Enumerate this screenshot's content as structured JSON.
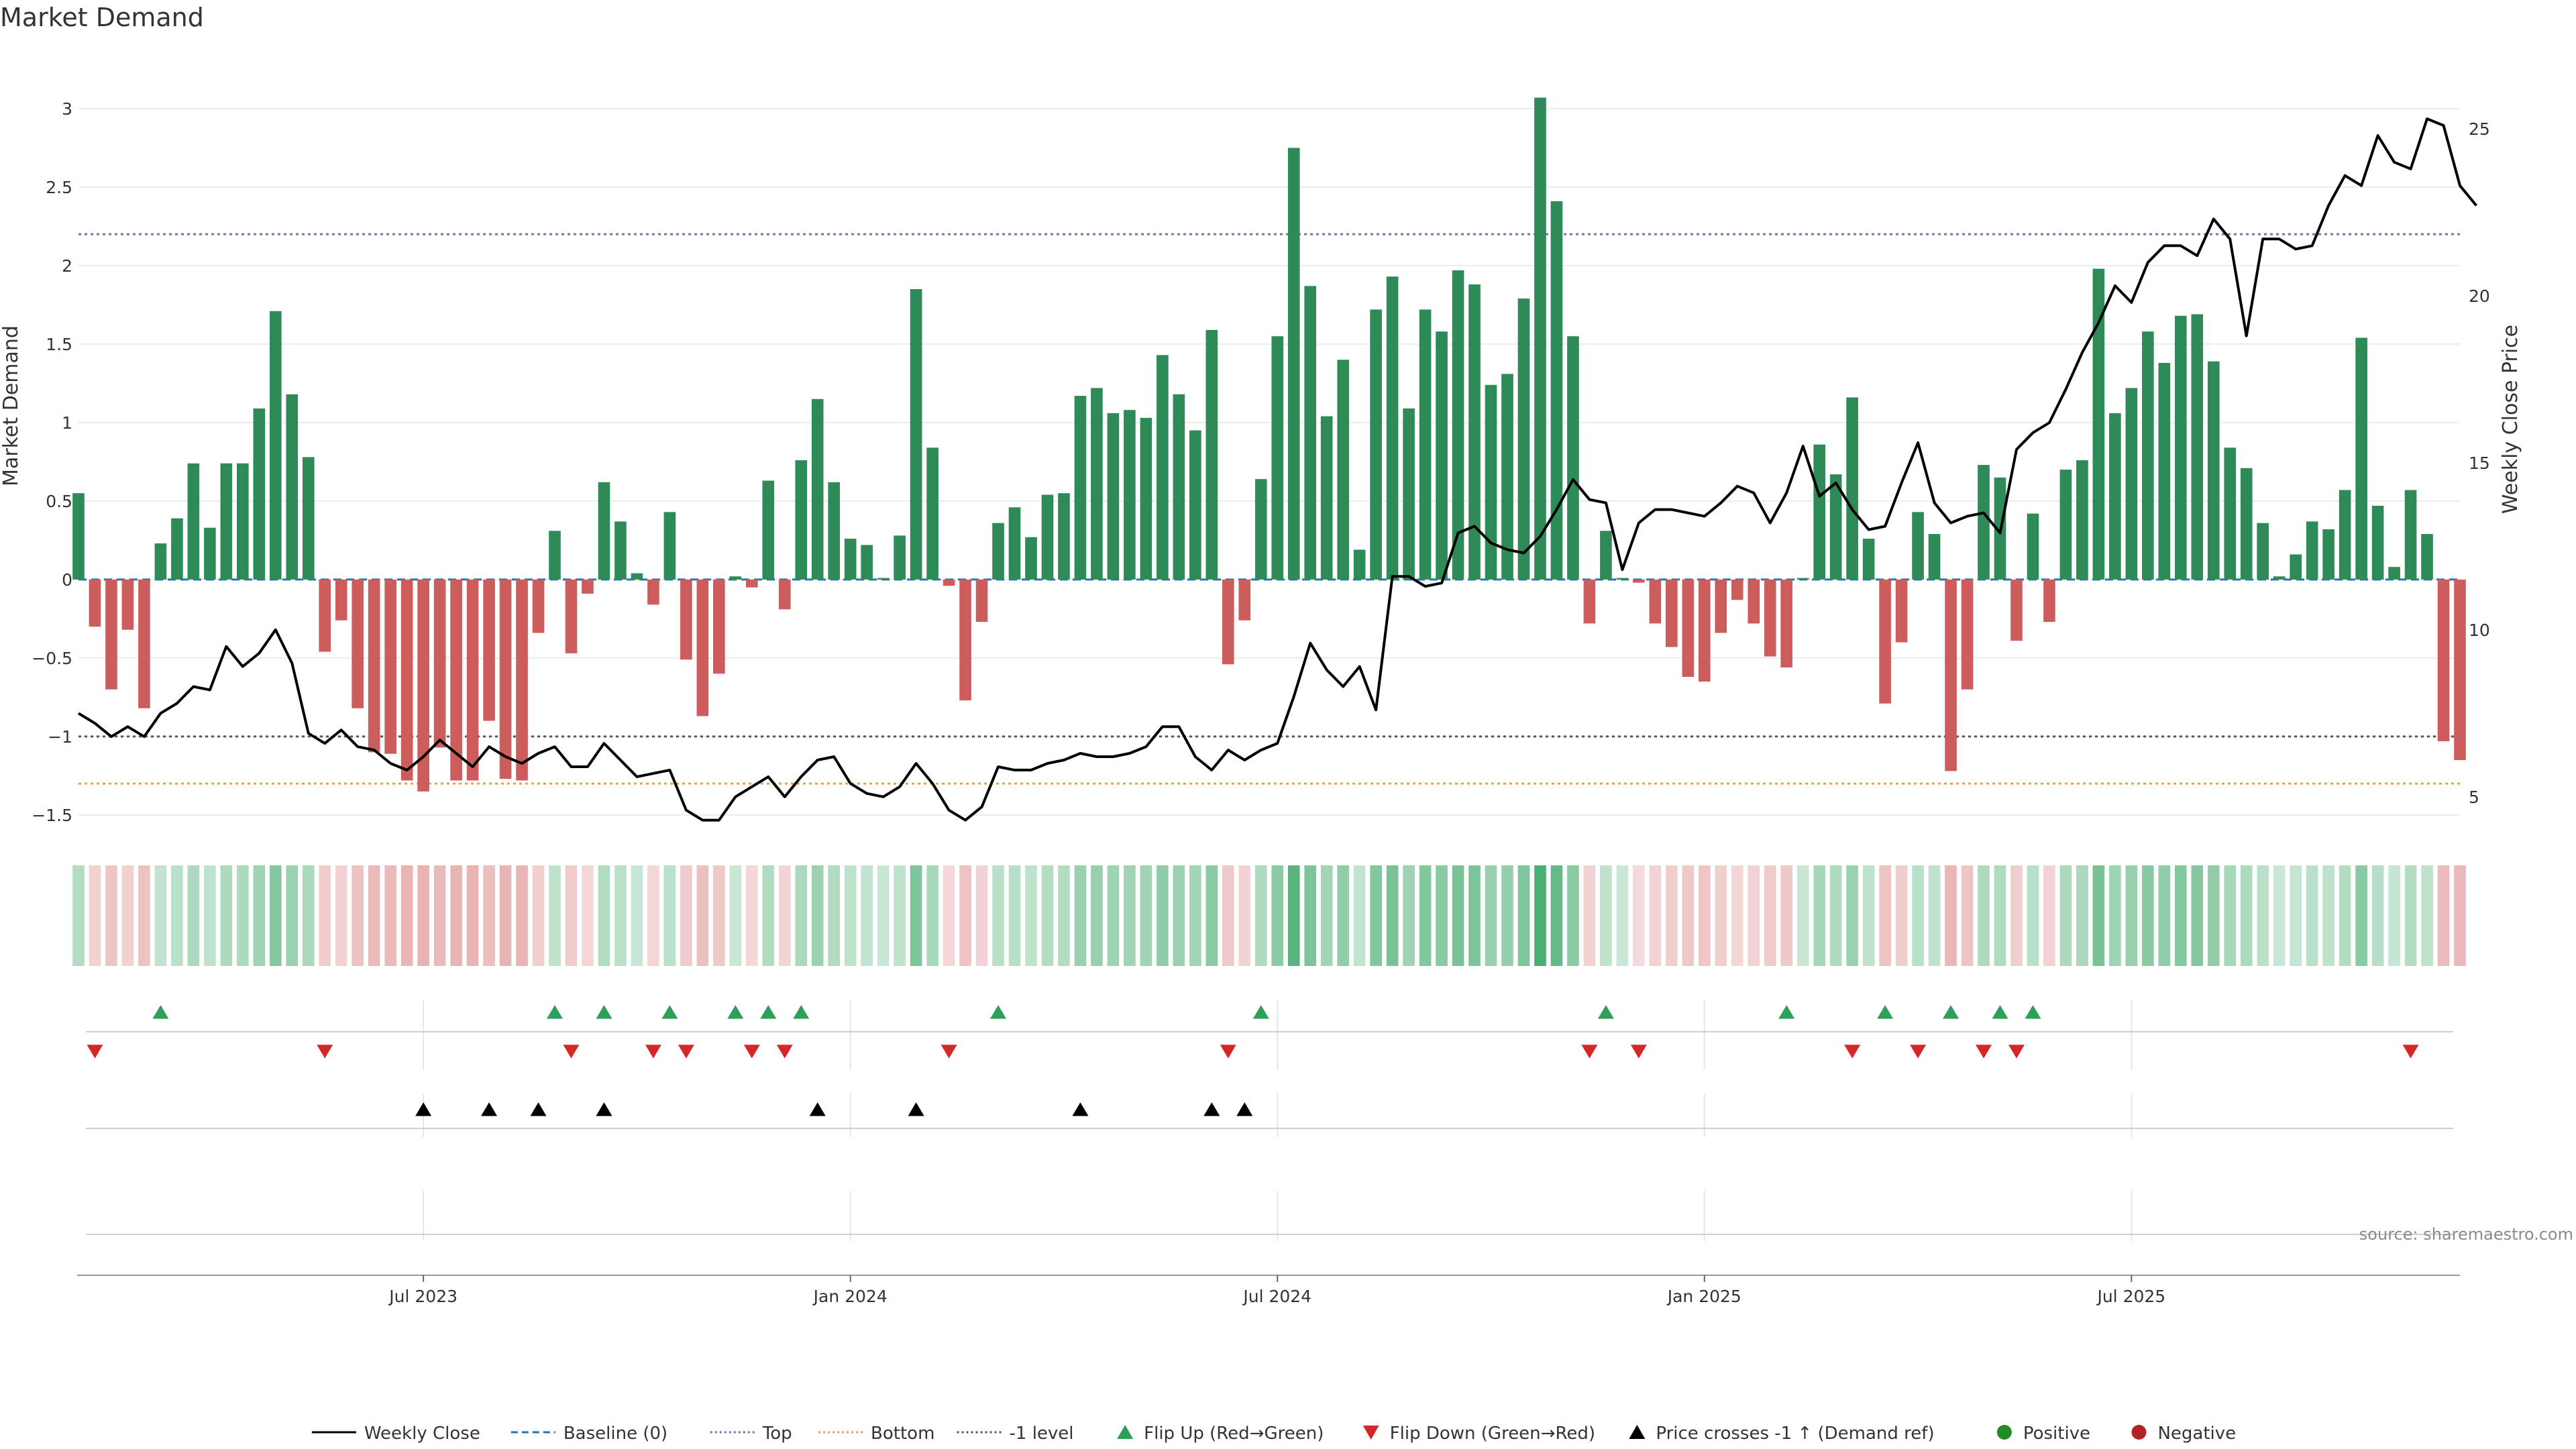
{
  "title": "Market Demand",
  "source": "source: sharemaestro.com",
  "colors": {
    "positive": "#2e8b57",
    "negative": "#cd5c5c",
    "price": "#000000",
    "baseline": "#1f77b4",
    "top": "#7a6fb0",
    "bottom": "#e8a050",
    "minus1": "#555555",
    "flip_up": "#2ca05a",
    "flip_down": "#d62728",
    "cross": "#000000",
    "heat_pos": "#2ca05a",
    "heat_neg": "#d46a6a"
  },
  "chart_data": {
    "type": "bar",
    "title": "Market Demand",
    "ylabel": "Market Demand",
    "y2label": "Weekly Close Price",
    "ylim": [
      -1.65,
      3.35
    ],
    "y_ticks": [
      3,
      2.5,
      2,
      1.5,
      1,
      0.5,
      0,
      -0.5,
      -1,
      -1.5
    ],
    "y_tick_labels": [
      "3",
      "2.5",
      "2",
      "1.5",
      "1",
      "0.5",
      "0",
      "−0.5",
      "−1",
      "−1.5"
    ],
    "y2lim": [
      3.75,
      27.25
    ],
    "y2_ticks": [
      5,
      10,
      15,
      20,
      25
    ],
    "y2_tick_labels": [
      "5",
      "10",
      "15",
      "20",
      "25"
    ],
    "x_ticks": [
      {
        "label": "Jul 2023",
        "index": 21
      },
      {
        "label": "Jan 2024",
        "index": 47
      },
      {
        "label": "Jul 2024",
        "index": 73
      },
      {
        "label": "Jan 2025",
        "index": 99
      },
      {
        "label": "Jul 2025",
        "index": 125
      }
    ],
    "reference_lines": {
      "top": 2.2,
      "bottom": -1.3,
      "minus1": -1.0,
      "baseline": 0
    },
    "demand": [
      0.55,
      -0.3,
      -0.7,
      -0.32,
      -0.82,
      0.23,
      0.39,
      0.74,
      0.33,
      0.74,
      0.74,
      1.09,
      1.71,
      1.18,
      0.78,
      -0.46,
      -0.26,
      -0.82,
      -1.1,
      -1.11,
      -1.28,
      -1.35,
      -1.07,
      -1.28,
      -1.28,
      -0.9,
      -1.27,
      -1.28,
      -0.34,
      0.31,
      -0.47,
      -0.09,
      0.62,
      0.37,
      0.04,
      -0.16,
      0.43,
      -0.51,
      -0.87,
      -0.6,
      0.02,
      -0.05,
      0.63,
      -0.19,
      0.76,
      1.15,
      0.62,
      0.26,
      0.22,
      0.01,
      0.28,
      1.85,
      0.84,
      -0.04,
      -0.77,
      -0.27,
      0.36,
      0.46,
      0.27,
      0.54,
      0.55,
      1.17,
      1.22,
      1.06,
      1.08,
      1.03,
      1.43,
      1.18,
      0.95,
      1.59,
      -0.54,
      -0.26,
      0.64,
      1.55,
      2.75,
      1.87,
      1.04,
      1.4,
      0.19,
      1.72,
      1.93,
      1.09,
      1.72,
      1.58,
      1.97,
      1.88,
      1.24,
      1.31,
      1.79,
      3.07,
      2.41,
      1.55,
      -0.28,
      0.31,
      0.01,
      -0.02,
      -0.28,
      -0.43,
      -0.62,
      -0.65,
      -0.34,
      -0.13,
      -0.28,
      -0.49,
      -0.56,
      0.01,
      0.86,
      0.67,
      1.16,
      0.26,
      -0.79,
      -0.4,
      0.43,
      0.29,
      -1.22,
      -0.7,
      0.73,
      0.65,
      -0.39,
      0.42,
      -0.27,
      0.7,
      0.76,
      1.98,
      1.06,
      1.22,
      1.58,
      1.38,
      1.68,
      1.69,
      1.39,
      0.84,
      0.71,
      0.36,
      0.02,
      0.16,
      0.37,
      0.32,
      0.57,
      1.54,
      0.47,
      0.08,
      0.57,
      0.29,
      -1.03,
      -1.15
    ],
    "weekly_close": [
      7.5,
      7.2,
      6.8,
      7.1,
      6.8,
      7.5,
      7.8,
      8.3,
      8.2,
      9.5,
      8.9,
      9.3,
      10.0,
      9.0,
      6.9,
      6.6,
      7.0,
      6.5,
      6.4,
      6.0,
      5.8,
      6.2,
      6.7,
      6.3,
      5.9,
      6.5,
      6.2,
      6.0,
      6.3,
      6.5,
      5.9,
      5.9,
      6.6,
      6.1,
      5.6,
      5.7,
      5.8,
      4.6,
      4.3,
      4.3,
      5.0,
      5.3,
      5.6,
      5.0,
      5.6,
      6.1,
      6.2,
      5.4,
      5.1,
      5.0,
      5.3,
      6.0,
      5.4,
      4.6,
      4.3,
      4.7,
      5.9,
      5.8,
      5.8,
      6.0,
      6.1,
      6.3,
      6.2,
      6.2,
      6.3,
      6.5,
      7.1,
      7.1,
      6.2,
      5.8,
      6.4,
      6.1,
      6.4,
      6.6,
      8.0,
      9.6,
      8.8,
      8.3,
      8.9,
      7.6,
      11.6,
      11.6,
      11.3,
      11.4,
      12.9,
      13.1,
      12.6,
      12.4,
      12.3,
      12.8,
      13.6,
      14.5,
      13.9,
      13.8,
      11.8,
      13.2,
      13.6,
      13.6,
      13.5,
      13.4,
      13.8,
      14.3,
      14.1,
      13.2,
      14.1,
      15.5,
      14.0,
      14.4,
      13.6,
      13.0,
      13.1,
      14.4,
      15.6,
      13.8,
      13.2,
      13.4,
      13.5,
      12.9,
      15.4,
      15.9,
      16.2,
      17.2,
      18.3,
      19.2,
      20.3,
      19.8,
      21.0,
      21.5,
      21.5,
      21.2,
      22.3,
      21.7,
      18.8,
      21.7,
      21.7,
      21.4,
      21.5,
      22.7,
      23.6,
      23.3,
      24.8,
      24.0,
      23.8,
      25.3,
      25.1,
      23.3,
      22.7
    ],
    "flip_up_weeks": [
      5,
      29,
      32,
      36,
      40,
      42,
      44,
      56,
      72,
      93,
      104,
      110,
      114,
      117,
      119
    ],
    "flip_down_weeks": [
      1,
      15,
      30,
      35,
      37,
      41,
      43,
      53,
      70,
      92,
      95,
      108,
      112,
      116,
      118,
      142
    ],
    "price_cross_weeks": [
      21,
      25,
      28,
      32,
      45,
      51,
      61,
      69,
      71
    ],
    "legend": [
      {
        "key": "line",
        "label": "Weekly Close",
        "color": "#000000",
        "dash": ""
      },
      {
        "key": "line",
        "label": "Baseline (0)",
        "color": "#1f77b4",
        "dash": "10 6"
      },
      {
        "key": "line",
        "label": "Top",
        "color": "#7a6fb0",
        "dash": "3 4"
      },
      {
        "key": "line",
        "label": "Bottom",
        "color": "#e8a050",
        "dash": "3 4"
      },
      {
        "key": "line",
        "label": "-1 level",
        "color": "#555555",
        "dash": "3 4"
      },
      {
        "key": "up",
        "label": "Flip Up (Red→Green)",
        "color": "#2ca05a"
      },
      {
        "key": "down",
        "label": "Flip Down (Green→Red)",
        "color": "#d62728"
      },
      {
        "key": "up",
        "label": "Price crosses -1 ↑ (Demand ref)",
        "color": "#000000"
      },
      {
        "key": "dot",
        "label": "Positive",
        "color": "#228b22"
      },
      {
        "key": "dot",
        "label": "Negative",
        "color": "#b22222"
      }
    ]
  }
}
